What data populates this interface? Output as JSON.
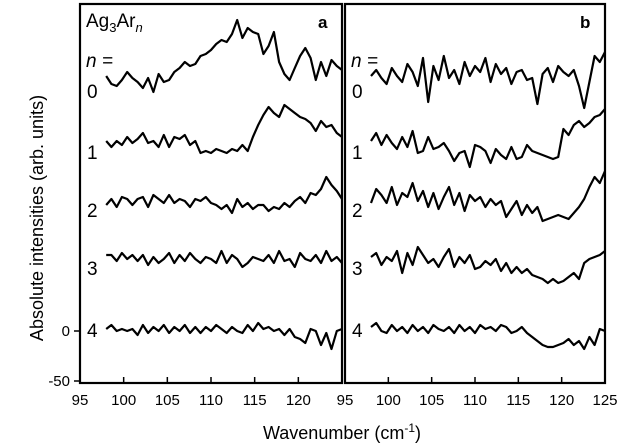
{
  "chart_data": [
    {
      "panel": "a",
      "type": "line",
      "title": "Ag3Arn",
      "title_parts": {
        "base": "Ag",
        "sub1": "3",
        "mid": "Ar",
        "sub2": "n"
      },
      "n_header": "n =",
      "xlabel": "Wavenumber (cm-1)",
      "ylabel": "Absolute intensities (arb. units)",
      "xlim": [
        95,
        125
      ],
      "ylim": [
        -50,
        350
      ],
      "y_ticks": [
        "0",
        "-50"
      ],
      "x": [
        98,
        98.6,
        99.2,
        99.8,
        100.4,
        101.0,
        101.6,
        102.2,
        102.8,
        103.4,
        104.0,
        104.6,
        105.2,
        105.8,
        106.4,
        107.0,
        107.6,
        108.2,
        108.8,
        109.4,
        110.0,
        110.6,
        111.2,
        111.8,
        112.4,
        113.0,
        113.6,
        114.2,
        114.8,
        115.4,
        116.0,
        116.6,
        117.2,
        117.8,
        118.4,
        119.0,
        119.6,
        120.2,
        120.8,
        121.4,
        122.0,
        122.6,
        123.2,
        123.8,
        124.4,
        125.0
      ],
      "series": [
        {
          "name": "0",
          "offset": 239,
          "values": [
            16,
            8,
            6,
            12,
            20,
            14,
            10,
            4,
            14,
            0,
            18,
            10,
            12,
            20,
            24,
            30,
            26,
            28,
            36,
            38,
            42,
            48,
            52,
            50,
            58,
            72,
            54,
            64,
            60,
            58,
            38,
            46,
            60,
            30,
            18,
            12,
            24,
            36,
            44,
            34,
            12,
            30,
            16,
            32,
            26,
            22
          ]
        },
        {
          "name": "1",
          "offset": 178,
          "values": [
            12,
            6,
            12,
            8,
            16,
            10,
            14,
            20,
            10,
            12,
            6,
            18,
            6,
            16,
            14,
            18,
            8,
            12,
            0,
            2,
            0,
            4,
            2,
            0,
            4,
            2,
            8,
            2,
            16,
            28,
            38,
            46,
            40,
            36,
            48,
            44,
            40,
            36,
            34,
            30,
            22,
            32,
            26,
            28,
            20,
            16
          ]
        },
        {
          "name": "2",
          "offset": 120,
          "values": [
            6,
            12,
            4,
            14,
            12,
            6,
            12,
            14,
            4,
            16,
            12,
            8,
            16,
            8,
            12,
            10,
            4,
            12,
            10,
            14,
            8,
            6,
            2,
            6,
            -2,
            12,
            4,
            8,
            2,
            6,
            6,
            0,
            4,
            2,
            8,
            4,
            10,
            14,
            8,
            18,
            16,
            22,
            34,
            26,
            20,
            12
          ]
        },
        {
          "name": "3",
          "offset": 62,
          "values": [
            14,
            14,
            8,
            16,
            10,
            14,
            8,
            14,
            4,
            12,
            6,
            10,
            16,
            6,
            14,
            8,
            16,
            10,
            6,
            12,
            10,
            6,
            18,
            6,
            14,
            10,
            2,
            6,
            12,
            10,
            8,
            14,
            6,
            18,
            8,
            10,
            2,
            16,
            10,
            8,
            14,
            6,
            18,
            8,
            12,
            6
          ]
        },
        {
          "name": "4",
          "offset": 0,
          "values": [
            2,
            6,
            0,
            2,
            0,
            2,
            -4,
            6,
            -2,
            4,
            0,
            6,
            -2,
            4,
            0,
            6,
            -2,
            4,
            -2,
            4,
            0,
            6,
            2,
            -2,
            4,
            0,
            -2,
            6,
            0,
            8,
            2,
            4,
            0,
            2,
            -4,
            2,
            -6,
            -8,
            -12,
            2,
            0,
            -14,
            -2,
            -18,
            0,
            2
          ]
        }
      ]
    },
    {
      "panel": "b",
      "type": "line",
      "n_header": "n =",
      "xlim": [
        95,
        125
      ],
      "ylim": [
        -50,
        350
      ],
      "x_ticks": [
        "95",
        "100",
        "105",
        "110",
        "115",
        "120",
        "125"
      ],
      "x": [
        98,
        98.6,
        99.2,
        99.8,
        100.4,
        101.0,
        101.6,
        102.2,
        102.8,
        103.4,
        104.0,
        104.6,
        105.2,
        105.8,
        106.4,
        107.0,
        107.6,
        108.2,
        108.8,
        109.4,
        110.0,
        110.6,
        111.2,
        111.8,
        112.4,
        113.0,
        113.6,
        114.2,
        114.8,
        115.4,
        116.0,
        116.6,
        117.2,
        117.8,
        118.4,
        119.0,
        119.6,
        120.2,
        120.8,
        121.4,
        122.0,
        122.6,
        123.2,
        123.8,
        124.4,
        125.0
      ],
      "series": [
        {
          "name": "0",
          "offset": 239,
          "values": [
            16,
            22,
            14,
            8,
            24,
            16,
            10,
            28,
            20,
            6,
            34,
            -10,
            26,
            12,
            36,
            14,
            22,
            8,
            30,
            16,
            26,
            20,
            34,
            10,
            28,
            18,
            24,
            8,
            20,
            22,
            12,
            14,
            -12,
            18,
            24,
            10,
            26,
            20,
            16,
            22,
            6,
            -16,
            10,
            36,
            30,
            40
          ]
        },
        {
          "name": "1",
          "offset": 178,
          "values": [
            12,
            20,
            8,
            18,
            10,
            4,
            16,
            6,
            22,
            0,
            2,
            16,
            4,
            6,
            10,
            2,
            -8,
            0,
            2,
            -14,
            8,
            6,
            2,
            -10,
            4,
            -2,
            -6,
            6,
            -6,
            -4,
            8,
            2,
            0,
            -2,
            -4,
            -6,
            -4,
            24,
            18,
            28,
            32,
            26,
            30,
            36,
            38,
            44
          ]
        },
        {
          "name": "2",
          "offset": 120,
          "values": [
            8,
            22,
            16,
            8,
            24,
            6,
            18,
            14,
            28,
            10,
            20,
            4,
            18,
            2,
            14,
            24,
            6,
            18,
            0,
            16,
            10,
            14,
            4,
            12,
            6,
            10,
            -6,
            2,
            10,
            -4,
            6,
            -2,
            4,
            -10,
            -8,
            -6,
            -4,
            -6,
            -8,
            -2,
            4,
            12,
            24,
            34,
            28,
            40
          ]
        },
        {
          "name": "3",
          "offset": 62,
          "values": [
            12,
            16,
            4,
            12,
            8,
            18,
            -4,
            16,
            4,
            22,
            14,
            6,
            10,
            2,
            12,
            20,
            2,
            12,
            6,
            14,
            0,
            2,
            8,
            4,
            10,
            -2,
            6,
            -4,
            2,
            -4,
            0,
            -6,
            -8,
            -10,
            -14,
            -10,
            -14,
            -12,
            -8,
            -4,
            -10,
            6,
            10,
            12,
            14,
            18
          ]
        },
        {
          "name": "4",
          "offset": 0,
          "values": [
            4,
            8,
            0,
            -2,
            6,
            0,
            4,
            -2,
            6,
            0,
            4,
            -2,
            6,
            2,
            0,
            4,
            -2,
            6,
            0,
            4,
            -2,
            6,
            2,
            4,
            0,
            6,
            4,
            -2,
            0,
            4,
            -2,
            -6,
            -10,
            -14,
            -16,
            -16,
            -14,
            -12,
            -8,
            -14,
            -10,
            -18,
            -6,
            -14,
            2,
            0
          ]
        }
      ]
    }
  ]
}
